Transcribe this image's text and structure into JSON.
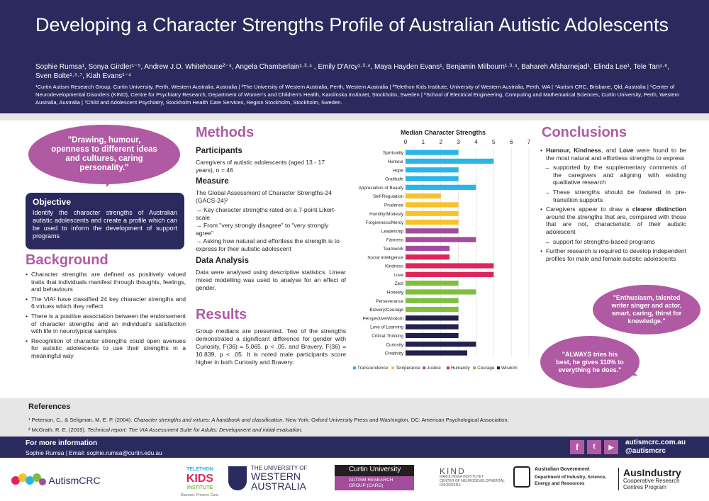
{
  "header": {
    "title": "Developing a Character Strengths Profile of Australian Autistic Adolescents",
    "authors": "Sophie Rumsa¹, Sonya Girdler¹⁻⁵, Andrew J.O. Whitehouse²⁻⁴, Angela Chamberlain¹·³·⁴ , Emily D'Arcy¹·³·⁴, Maya Hayden Evans¹, Benjamin Milbourn¹·³·⁴, Bahareh Afsharnejad¹, Elinda Lee¹, Tele Tan¹·⁶, Sven Bolte¹·⁵·⁷, Kiah Evans¹⁻⁴",
    "affiliations": "¹Curtin Autism Research Group, Curtin University, Perth, Western Australia, Australia | ²The University of Western Australia, Perth, Western Australia | ³Telethon Kids Institute, University of Western Australia, Perth, WA | ⁴Autism CRC, Brisbane, Qld, Australia | ⁵Center of Neurodevelopmental Disorders (KIND), Centre for Psychiatry Research, Department of Women's and Children's Health, Karolinska Institutet, Stockholm, Sweden | ⁶School of Electrical Engineering, Computing and Mathematical Sciences, Curtin University, Perth, Western Australia, Australia | ⁷Child and Adolescent Psychiatry, Stockholm Health Care Services, Region Stockholm, Stockholm, Sweden."
  },
  "quotes": {
    "q1": "\"Drawing, humour, openness to different ideas and cultures, caring personality.\"",
    "q2": "\"Enthusiasm, talented writer singer and actor, smart, caring, thirst for knowledge.\"",
    "q3": "\"ALWAYS tries his best, he gives 110% to everything he does.\""
  },
  "objective": {
    "heading": "Objective",
    "text": "Identify the character strengths of Australian autistic adolescents and create a profile which can be used to inform the development of support programs"
  },
  "background": {
    "heading": "Background",
    "items": [
      "Character strengths are defined as positively valued traits that individuals manifest through thoughts, feelings, and behaviours",
      "The VIA¹ have classified 24 key character strengths and 6 virtues which they reflect",
      "There is a positive association between the endorsement of character strengths and an individual's satisfaction with life in neurotypical samples",
      "Recognition of character strengths could open avenues for autistic adolescents to use their strengths in a meaningful way"
    ]
  },
  "methods": {
    "heading": "Methods",
    "participants_h": "Participants",
    "participants": "Caregivers of autistic adolescents (aged 13 - 17 years), n = 46",
    "measure_h": "Measure",
    "measure_1": "The Global Assessment of Character Strengths-24 (GACS-24)²",
    "measure_2": "→ Key character strengths rated on a 7-point Likert-scale",
    "measure_3": "→ From \"very strongly disagree\" to \"very strongly agree\"",
    "measure_4": "→ Asking how natural and effortless the strength is to express for their autistic adolescent",
    "analysis_h": "Data Analysis",
    "analysis": "Data were analysed using descriptive statistics. Linear mixed modelling was used to analyse for an effect of gender."
  },
  "results": {
    "heading": "Results",
    "text": "Group medians are presented. Two of the strengths demonstrated a significant difference for gender with Curiosity, F(36) = 5.065, p < .05, and Bravery, F(36) = 10.839, p < .05. It is noted male participants score higher in both Curiosity and Bravery."
  },
  "chart_data": {
    "type": "bar",
    "orientation": "horizontal",
    "title": "Median Character Strengths",
    "xlim": [
      0,
      7
    ],
    "xticks": [
      "0",
      "1",
      "2",
      "3",
      "4",
      "5",
      "6",
      "7"
    ],
    "grid": true,
    "legend_position": "bottom",
    "categories": [
      "Spirituality",
      "Humour",
      "Hope",
      "Gratitude",
      "Appreciation of Beauty",
      "Self-Regulation",
      "Prudence",
      "Humility/Modesty",
      "Forgiveness/Mercy",
      "Leadership",
      "Fairness",
      "Teamwork",
      "Social Intelligence",
      "Kindness",
      "Love",
      "Zest",
      "Honesty",
      "Perseverance",
      "Bravery/Courage",
      "Perspective/Wisdom",
      "Love of Learning",
      "Critical Thinking",
      "Curiosity",
      "Creativity"
    ],
    "values": [
      3,
      5,
      3,
      3,
      4,
      2,
      3,
      3,
      3,
      3,
      4,
      2.5,
      2.5,
      5,
      5,
      3,
      4,
      3,
      3,
      3,
      3,
      3,
      4,
      3.5
    ],
    "groups": [
      "Transcendence",
      "Transcendence",
      "Transcendence",
      "Transcendence",
      "Transcendence",
      "Temperance",
      "Temperance",
      "Temperance",
      "Temperance",
      "Justice",
      "Justice",
      "Justice",
      "Humanity",
      "Humanity",
      "Humanity",
      "Courage",
      "Courage",
      "Courage",
      "Courage",
      "Wisdom",
      "Wisdom",
      "Wisdom",
      "Wisdom",
      "Wisdom"
    ],
    "legend": [
      {
        "name": "Transcendence",
        "color": "#29b5e8"
      },
      {
        "name": "Temperance",
        "color": "#f7c22b"
      },
      {
        "name": "Justice",
        "color": "#a24c9b"
      },
      {
        "name": "Humanity",
        "color": "#e0245a"
      },
      {
        "name": "Courage",
        "color": "#7fbf3f"
      },
      {
        "name": "Wisdom",
        "color": "#23204d"
      }
    ]
  },
  "conclusions": {
    "heading": "Conclusions",
    "c1_pre": " ",
    "c1_humour": "Humour, Kindness",
    "c1_and": ", and ",
    "c1_love": "Love",
    "c1_post": " were found to be the most natural and effortless strengths to express",
    "c1_s1": "supported by the supplementary comments of the caregivers and aligning with existing qualitative research",
    "c1_s2": "These strengths should be fostered in pre-transition supports",
    "c2_pre": "Caregivers appear to draw a ",
    "c2_bold": "clearer distinction",
    "c2_post": " around the strengths that are, compared with those that are not, characteristic of their autistic adolescent",
    "c2_s1": "support for strengths-based programs",
    "c3": "Further research is required to develop independent profiles for male and female autistic adolescents"
  },
  "references": {
    "heading": "References",
    "r1_a": "¹ Peterson, C., & Seligman, M. E. P. (2004). ",
    "r1_b": "Character strengths and virtues: A handbook and classification",
    "r1_c": ". New York: Oxford University Press and Washington, DC: American Psychological Association.",
    "r2_a": "² McGrath, R. E. (2019). ",
    "r2_b": "Technical report: The VIA Assessment Suite for Adults: Development and initial evaluation."
  },
  "footer": {
    "more_info": "For more information",
    "contact": "Sophie Rumsa |   Email: sophie.rumsa@curtin.edu.au",
    "url": "autismcrc.com.au",
    "twitter": "@autismcrc",
    "social_icons": [
      "facebook-icon",
      "twitter-icon",
      "youtube-icon"
    ]
  },
  "logos": {
    "autismcrc": "AutismCRC",
    "telethon_1": "TELETHON",
    "telethon_2": "KIDS",
    "telethon_3": "INSTITUTE",
    "telethon_4": "Discover. Prevent. Cure.",
    "uwa_1": "THE UNIVERSITY OF",
    "uwa_2": "WESTERN",
    "uwa_3": "AUSTRALIA",
    "curtin_1": "Curtin University",
    "curtin_2": "AUTISM RESEARCH",
    "curtin_3": "GROUP (CARG)",
    "kind_1": "KIND",
    "kind_2": "KAROLINSKA INSTITUTET",
    "kind_3": "CENTER OF NEURODEVELOPMENTAL",
    "kind_4": "DISORDERS",
    "gov_1": "Australian Government",
    "gov_2": "Department of Industry, Science,",
    "gov_3": "Energy and Resources",
    "aus_1": "AusIndustry",
    "aus_2": "Cooperative Research",
    "aus_3": "Centres Program"
  }
}
